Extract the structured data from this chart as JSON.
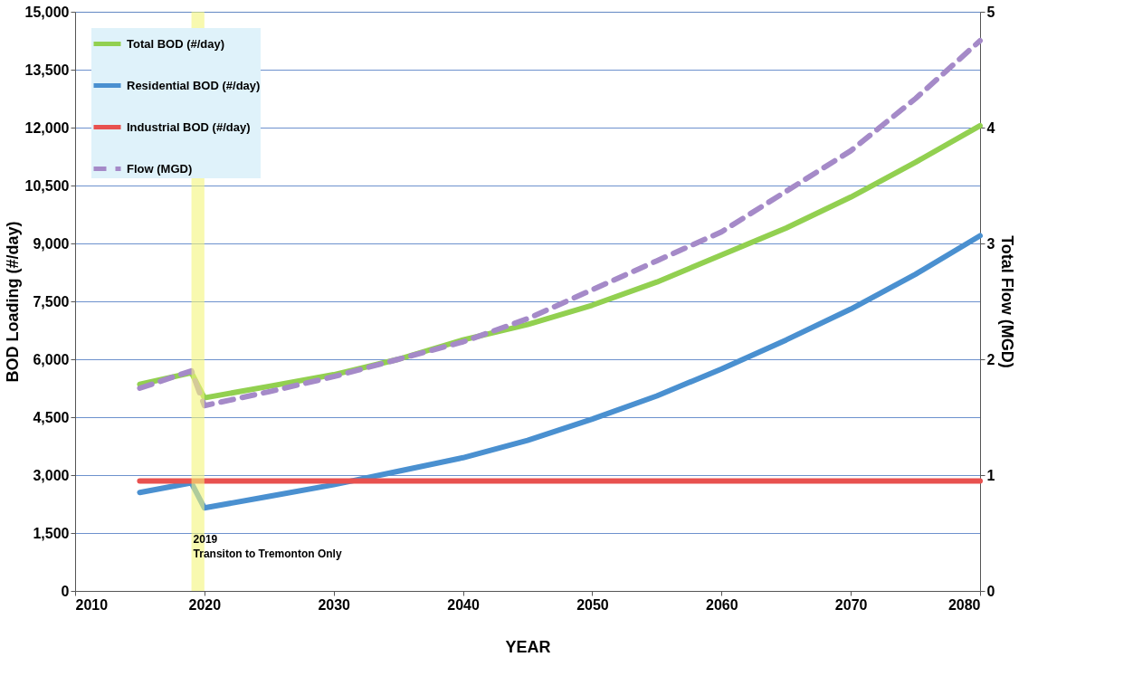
{
  "chart_data": {
    "type": "line",
    "xlabel": "YEAR",
    "ylabel": "BOD Loading (#/day)",
    "y2label": "Total Flow (MGD)",
    "x": [
      2015,
      2019,
      2020,
      2025,
      2030,
      2035,
      2040,
      2045,
      2050,
      2055,
      2060,
      2065,
      2070,
      2075,
      2080
    ],
    "series": [
      {
        "name": "Total BOD (#/day)",
        "color": "#92d050",
        "values": [
          5350,
          5650,
          5000,
          5300,
          5600,
          6000,
          6500,
          6900,
          7400,
          8000,
          8700,
          9400,
          10200,
          11100,
          12050
        ]
      },
      {
        "name": "Residential BOD (#/day)",
        "color": "#4a90d0",
        "values": [
          2550,
          2800,
          2150,
          2450,
          2750,
          3100,
          3450,
          3900,
          4450,
          5050,
          5750,
          6500,
          7300,
          8200,
          9200
        ]
      },
      {
        "name": "Industrial BOD (#/day)",
        "color": "#e8514f",
        "values": [
          2850,
          2850,
          2850,
          2850,
          2850,
          2850,
          2850,
          2850,
          2850,
          2850,
          2850,
          2850,
          2850,
          2850,
          2850
        ]
      },
      {
        "name": "Flow (MGD)",
        "color": "#a58ac8",
        "axis": "y2",
        "line_style": "dashed",
        "values": [
          1.75,
          1.9,
          1.6,
          1.72,
          1.85,
          2.0,
          2.15,
          2.35,
          2.6,
          2.85,
          3.1,
          3.45,
          3.8,
          4.25,
          4.75
        ]
      }
    ],
    "xlim": [
      2010,
      2080
    ],
    "xticks": [
      2010,
      2020,
      2030,
      2040,
      2050,
      2060,
      2070,
      2080
    ],
    "ylim": [
      0,
      15000
    ],
    "yticks": [
      0,
      {
        "value": 1500,
        "label": "1,500"
      },
      {
        "value": 3000,
        "label": "3,000"
      },
      {
        "value": 4500,
        "label": "4,500"
      },
      {
        "value": 6000,
        "label": "6,000"
      },
      {
        "value": 7500,
        "label": "7,500"
      },
      {
        "value": 9000,
        "label": "9,000"
      },
      {
        "value": 10500,
        "label": "10,500"
      },
      {
        "value": 12000,
        "label": "12,000"
      },
      {
        "value": 13500,
        "label": "13,500"
      },
      {
        "value": 15000,
        "label": "15,000"
      }
    ],
    "y2lim": [
      0,
      5
    ],
    "y2ticks": [
      0,
      1,
      2,
      3,
      4,
      5
    ],
    "bands": [
      {
        "axis": "x",
        "from": 2019,
        "to": 2020,
        "label": "2019",
        "color": "#f4f57a"
      }
    ],
    "annotations": [
      "Transiton to Tremonton Only"
    ],
    "grid": "y",
    "legend": "top left",
    "line_style": "solid",
    "marker": "none"
  }
}
